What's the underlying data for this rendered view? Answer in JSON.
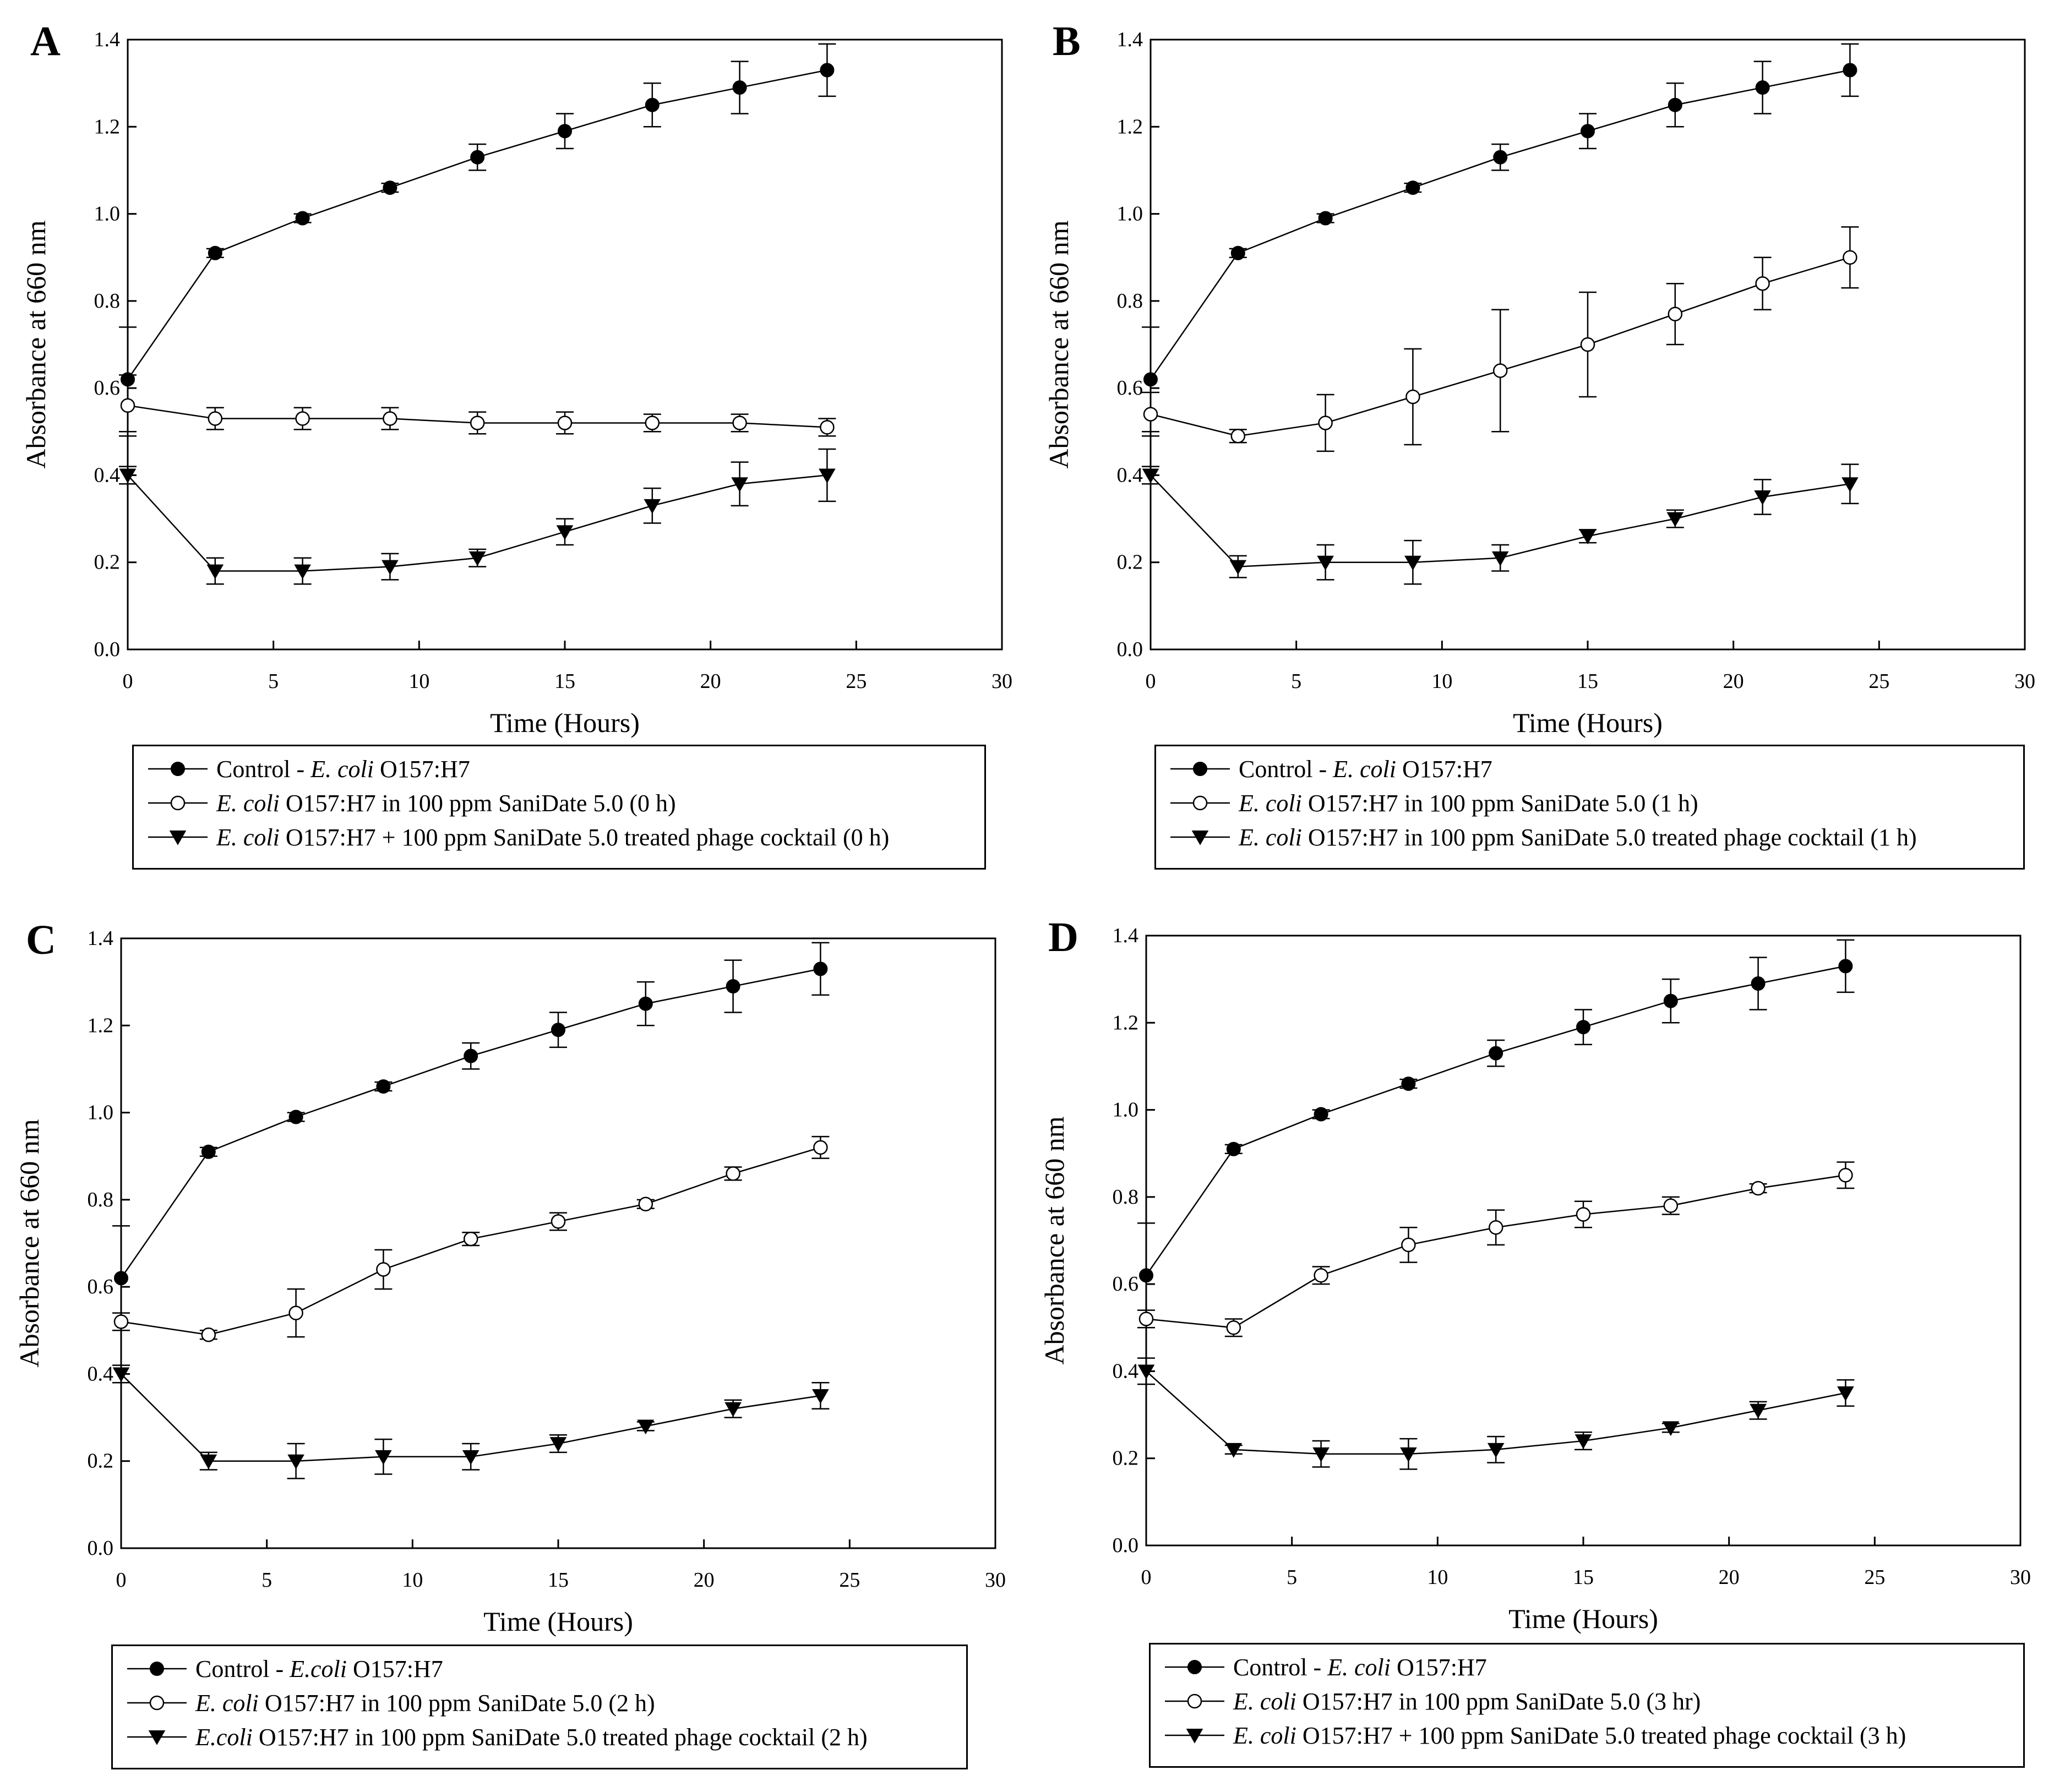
{
  "chart_data": [
    {
      "type": "line",
      "panel_label": "A",
      "xlabel": "Time (Hours)",
      "ylabel": "Absorbance at 660 nm",
      "xlim": [
        0,
        30
      ],
      "ylim": [
        0,
        1.4
      ],
      "x_ticks": [
        "0",
        "5",
        "10",
        "15",
        "20",
        "25",
        "30"
      ],
      "y_ticks": [
        "0.0",
        "0.2",
        "0.4",
        "0.6",
        "0.8",
        "1.0",
        "1.2",
        "1.4"
      ],
      "grid": false,
      "legend_position": "below",
      "x": [
        0,
        3,
        6,
        9,
        12,
        15,
        18,
        21,
        24
      ],
      "series": [
        {
          "marker": "filled-circle",
          "legend_parts": [
            [
              "Control - ",
              false
            ],
            [
              "E. coli",
              true
            ],
            [
              " O157:H7",
              false
            ]
          ],
          "values": [
            0.62,
            0.91,
            0.99,
            1.06,
            1.13,
            1.19,
            1.25,
            1.29,
            1.33
          ],
          "errors": [
            0.12,
            0.01,
            0.01,
            0.01,
            0.03,
            0.04,
            0.05,
            0.06,
            0.06
          ]
        },
        {
          "marker": "open-circle",
          "legend_parts": [
            [
              "E. coli",
              true
            ],
            [
              " O157:H7 in 100 ppm SaniDate 5.0 (0 h)",
              false
            ]
          ],
          "values": [
            0.56,
            0.53,
            0.53,
            0.53,
            0.52,
            0.52,
            0.52,
            0.52,
            0.51
          ],
          "errors": [
            0.07,
            0.025,
            0.025,
            0.025,
            0.025,
            0.025,
            0.02,
            0.02,
            0.02
          ]
        },
        {
          "marker": "filled-triangle-down",
          "legend_parts": [
            [
              "E. coli",
              true
            ],
            [
              " O157:H7 + 100 ppm SaniDate 5.0 treated phage cocktail (0 h)",
              false
            ]
          ],
          "values": [
            0.4,
            0.18,
            0.18,
            0.19,
            0.21,
            0.27,
            0.33,
            0.38,
            0.4
          ],
          "errors": [
            0.02,
            0.03,
            0.03,
            0.03,
            0.02,
            0.03,
            0.04,
            0.05,
            0.06
          ]
        }
      ]
    },
    {
      "type": "line",
      "panel_label": "B",
      "xlabel": "Time (Hours)",
      "ylabel": "Absorbance at 660 nm",
      "xlim": [
        0,
        30
      ],
      "ylim": [
        0,
        1.4
      ],
      "x_ticks": [
        "0",
        "5",
        "10",
        "15",
        "20",
        "25",
        "30"
      ],
      "y_ticks": [
        "0.0",
        "0.2",
        "0.4",
        "0.6",
        "0.8",
        "1.0",
        "1.2",
        "1.4"
      ],
      "grid": false,
      "legend_position": "below",
      "x": [
        0,
        3,
        6,
        9,
        12,
        15,
        18,
        21,
        24
      ],
      "series": [
        {
          "marker": "filled-circle",
          "legend_parts": [
            [
              "Control - ",
              false
            ],
            [
              "E. coli",
              true
            ],
            [
              " O157:H7",
              false
            ]
          ],
          "values": [
            0.62,
            0.91,
            0.99,
            1.06,
            1.13,
            1.19,
            1.25,
            1.29,
            1.33
          ],
          "errors": [
            0.12,
            0.01,
            0.01,
            0.01,
            0.03,
            0.04,
            0.05,
            0.06,
            0.06
          ]
        },
        {
          "marker": "open-circle",
          "legend_parts": [
            [
              "E. coli",
              true
            ],
            [
              " O157:H7 in 100 ppm SaniDate 5.0 (1 h)",
              false
            ]
          ],
          "values": [
            0.54,
            0.49,
            0.52,
            0.58,
            0.64,
            0.7,
            0.77,
            0.84,
            0.9
          ],
          "errors": [
            0.05,
            0.015,
            0.065,
            0.11,
            0.14,
            0.12,
            0.07,
            0.06,
            0.07
          ]
        },
        {
          "marker": "filled-triangle-down",
          "legend_parts": [
            [
              "E. coli",
              true
            ],
            [
              " O157:H7 in 100 ppm SaniDate 5.0 treated phage cocktail (1 h)",
              false
            ]
          ],
          "values": [
            0.4,
            0.19,
            0.2,
            0.2,
            0.21,
            0.26,
            0.3,
            0.35,
            0.38
          ],
          "errors": [
            0.02,
            0.025,
            0.04,
            0.05,
            0.03,
            0.015,
            0.02,
            0.04,
            0.045
          ]
        }
      ]
    },
    {
      "type": "line",
      "panel_label": "C",
      "xlabel": "Time (Hours)",
      "ylabel": "Absorbance at 660 nm",
      "xlim": [
        0,
        30
      ],
      "ylim": [
        0,
        1.4
      ],
      "x_ticks": [
        "0",
        "5",
        "10",
        "15",
        "20",
        "25",
        "30"
      ],
      "y_ticks": [
        "0.0",
        "0.2",
        "0.4",
        "0.6",
        "0.8",
        "1.0",
        "1.2",
        "1.4"
      ],
      "grid": false,
      "legend_position": "below",
      "x": [
        0,
        3,
        6,
        9,
        12,
        15,
        18,
        21,
        24
      ],
      "series": [
        {
          "marker": "filled-circle",
          "legend_parts": [
            [
              "Control - ",
              false
            ],
            [
              "E.coli",
              true
            ],
            [
              " O157:H7",
              false
            ]
          ],
          "values": [
            0.62,
            0.91,
            0.99,
            1.06,
            1.13,
            1.19,
            1.25,
            1.29,
            1.33
          ],
          "errors": [
            0.12,
            0.01,
            0.01,
            0.01,
            0.03,
            0.04,
            0.05,
            0.06,
            0.06
          ]
        },
        {
          "marker": "open-circle",
          "legend_parts": [
            [
              "E. coli",
              true
            ],
            [
              " O157:H7 in 100 ppm SaniDate 5.0 (2 h)",
              false
            ]
          ],
          "values": [
            0.52,
            0.49,
            0.54,
            0.64,
            0.71,
            0.75,
            0.79,
            0.86,
            0.92
          ],
          "errors": [
            0.02,
            0.01,
            0.055,
            0.045,
            0.015,
            0.02,
            0.01,
            0.015,
            0.025
          ]
        },
        {
          "marker": "filled-triangle-down",
          "legend_parts": [
            [
              "E.coli",
              true
            ],
            [
              " O157:H7 in 100 ppm SaniDate 5.0 treated phage cocktail (2 h)",
              false
            ]
          ],
          "values": [
            0.4,
            0.2,
            0.2,
            0.21,
            0.21,
            0.24,
            0.28,
            0.32,
            0.35
          ],
          "errors": [
            0.02,
            0.02,
            0.04,
            0.04,
            0.03,
            0.02,
            0.01,
            0.02,
            0.03
          ]
        }
      ]
    },
    {
      "type": "line",
      "panel_label": "D",
      "xlabel": "Time (Hours)",
      "ylabel": "Absorbance at 660 nm",
      "xlim": [
        0,
        30
      ],
      "ylim": [
        0,
        1.4
      ],
      "x_ticks": [
        "0",
        "5",
        "10",
        "15",
        "20",
        "25",
        "30"
      ],
      "y_ticks": [
        "0.0",
        "0.2",
        "0.4",
        "0.6",
        "0.8",
        "1.0",
        "1.2",
        "1.4"
      ],
      "grid": false,
      "legend_position": "below",
      "x": [
        0,
        3,
        6,
        9,
        12,
        15,
        18,
        21,
        24
      ],
      "series": [
        {
          "marker": "filled-circle",
          "legend_parts": [
            [
              "Control - ",
              false
            ],
            [
              "E. coli",
              true
            ],
            [
              " O157:H7",
              false
            ]
          ],
          "values": [
            0.62,
            0.91,
            0.99,
            1.06,
            1.13,
            1.19,
            1.25,
            1.29,
            1.33
          ],
          "errors": [
            0.12,
            0.01,
            0.01,
            0.01,
            0.03,
            0.04,
            0.05,
            0.06,
            0.06
          ]
        },
        {
          "marker": "open-circle",
          "legend_parts": [
            [
              "E. coli",
              true
            ],
            [
              " O157:H7 in 100 ppm SaniDate 5.0 (3 hr)",
              false
            ]
          ],
          "values": [
            0.52,
            0.5,
            0.62,
            0.69,
            0.73,
            0.76,
            0.78,
            0.82,
            0.85
          ],
          "errors": [
            0.02,
            0.02,
            0.02,
            0.04,
            0.04,
            0.03,
            0.02,
            0.01,
            0.03
          ]
        },
        {
          "marker": "filled-triangle-down",
          "legend_parts": [
            [
              "E. coli",
              true
            ],
            [
              " O157:H7 + 100 ppm SaniDate 5.0 treated phage cocktail  (3 h)",
              false
            ]
          ],
          "values": [
            0.4,
            0.22,
            0.21,
            0.21,
            0.22,
            0.24,
            0.27,
            0.31,
            0.35
          ],
          "errors": [
            0.03,
            0.01,
            0.03,
            0.035,
            0.03,
            0.02,
            0.01,
            0.02,
            0.03
          ]
        }
      ]
    }
  ]
}
